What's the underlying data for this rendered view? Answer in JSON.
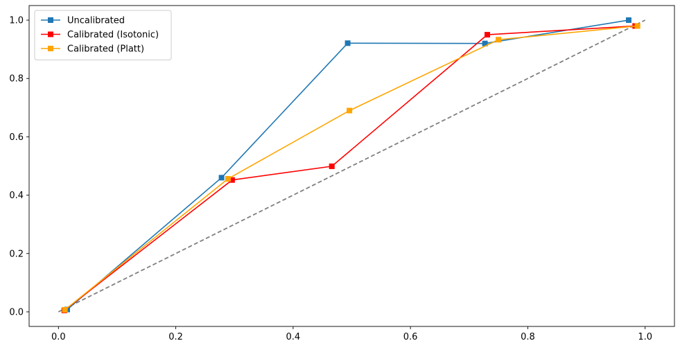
{
  "chart_data": {
    "type": "line",
    "title": "",
    "xlabel": "",
    "ylabel": "",
    "xlim": [
      -0.05,
      1.05
    ],
    "ylim": [
      -0.05,
      1.05
    ],
    "x_ticks": [
      "0.0",
      "0.2",
      "0.4",
      "0.6",
      "0.8",
      "1.0"
    ],
    "y_ticks": [
      "0.0",
      "0.2",
      "0.4",
      "0.6",
      "0.8",
      "1.0"
    ],
    "grid": false,
    "legend_position": "top-left",
    "reference_line": {
      "style": "dashed",
      "color": "#7f7f7f",
      "points": [
        [
          0,
          0
        ],
        [
          1,
          1
        ]
      ]
    },
    "series": [
      {
        "name": "Uncalibrated",
        "color": "#1f77b4",
        "marker": "square",
        "points": [
          [
            0.015,
            0.008
          ],
          [
            0.278,
            0.46
          ],
          [
            0.493,
            0.921
          ],
          [
            0.727,
            0.92
          ],
          [
            0.972,
            1.0
          ]
        ]
      },
      {
        "name": "Calibrated (Isotonic)",
        "color": "#ff0000",
        "marker": "square",
        "points": [
          [
            0.01,
            0.005
          ],
          [
            0.296,
            0.452
          ],
          [
            0.466,
            0.499
          ],
          [
            0.731,
            0.95
          ],
          [
            0.983,
            0.98
          ]
        ]
      },
      {
        "name": "Calibrated (Platt)",
        "color": "#ffa500",
        "marker": "square",
        "points": [
          [
            0.011,
            0.007
          ],
          [
            0.289,
            0.456
          ],
          [
            0.496,
            0.69
          ],
          [
            0.75,
            0.933
          ],
          [
            0.987,
            0.98
          ]
        ]
      }
    ]
  }
}
